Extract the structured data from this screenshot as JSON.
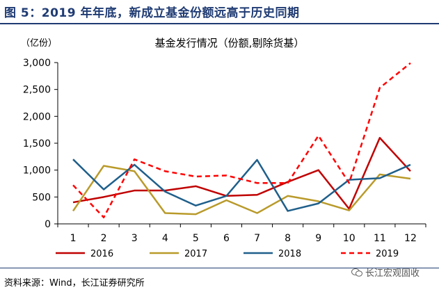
{
  "figure": {
    "title": "图 5：2019 年年底，新成立基金份额远高于历史同期",
    "source": "资料来源：Wind，长江证券研究所",
    "watermark": "长江宏观固收",
    "watermark_icon": "wechat-icon"
  },
  "chart_data": {
    "type": "line",
    "title": "基金发行情况（份额,剔除货基）",
    "unit_label": "（亿份）",
    "xlabel": "",
    "ylabel": "",
    "x": [
      "1",
      "2",
      "3",
      "4",
      "5",
      "6",
      "7",
      "8",
      "9",
      "10",
      "11",
      "12"
    ],
    "ylim": [
      0,
      3000
    ],
    "yticks": [
      0,
      500,
      1000,
      1500,
      2000,
      2500,
      3000
    ],
    "ytick_labels": [
      "0",
      "500",
      "1,000",
      "1,500",
      "2,000",
      "2,500",
      "3,000"
    ],
    "grid": false,
    "legend": "bottom",
    "series": [
      {
        "name": "2016",
        "color": "#c00000",
        "dash": false,
        "values": [
          400,
          500,
          620,
          620,
          700,
          520,
          540,
          780,
          1000,
          280,
          1600,
          980
        ]
      },
      {
        "name": "2017",
        "color": "#b99a2a",
        "dash": false,
        "values": [
          240,
          1080,
          980,
          200,
          180,
          440,
          200,
          520,
          420,
          250,
          920,
          840
        ]
      },
      {
        "name": "2018",
        "color": "#1f5f8b",
        "dash": false,
        "values": [
          1200,
          640,
          1100,
          600,
          340,
          520,
          1190,
          240,
          380,
          820,
          850,
          1100
        ]
      },
      {
        "name": "2019",
        "color": "#ff0000",
        "dash": true,
        "values": [
          720,
          120,
          1200,
          980,
          880,
          900,
          760,
          760,
          1640,
          760,
          2530,
          2990
        ]
      }
    ]
  }
}
